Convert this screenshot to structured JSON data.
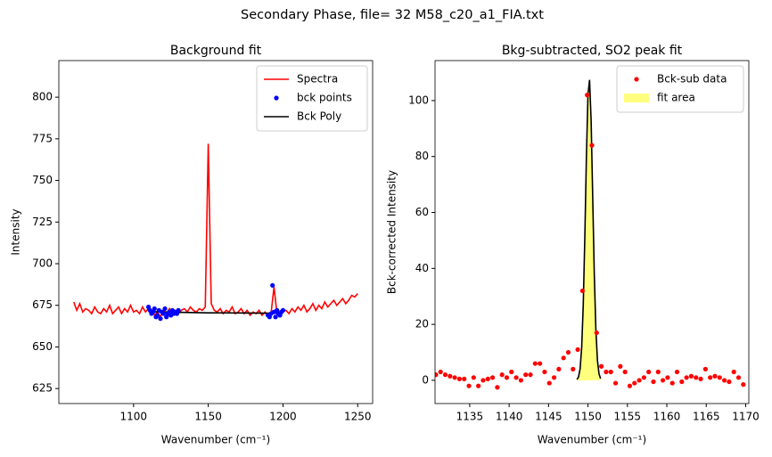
{
  "title": "Secondary Phase, file= 32 M58_c20_a1_FIA.txt",
  "chart_data": [
    {
      "type": "line",
      "title": "Background fit",
      "x_label": "Wavenumber (cm⁻¹)",
      "y_label": "Intensity",
      "xlim": [
        1050,
        1260
      ],
      "ylim": [
        616,
        822
      ],
      "xticks": [
        1100,
        1150,
        1200,
        1250
      ],
      "yticks": [
        625,
        650,
        675,
        700,
        725,
        750,
        775,
        800
      ],
      "legend": "upper right",
      "series": [
        {
          "name": "Spectra",
          "color": "#ff0000",
          "mark": "line",
          "x": [
            1060,
            1062,
            1064,
            1066,
            1068,
            1070,
            1072,
            1074,
            1076,
            1078,
            1080,
            1082,
            1084,
            1086,
            1088,
            1090,
            1092,
            1094,
            1096,
            1098,
            1100,
            1102,
            1104,
            1106,
            1108,
            1110,
            1112,
            1114,
            1116,
            1118,
            1120,
            1122,
            1124,
            1126,
            1128,
            1130,
            1132,
            1134,
            1136,
            1138,
            1140,
            1142,
            1144,
            1146,
            1148,
            1150,
            1152,
            1154,
            1156,
            1158,
            1160,
            1162,
            1164,
            1166,
            1168,
            1170,
            1172,
            1174,
            1176,
            1178,
            1180,
            1182,
            1184,
            1186,
            1188,
            1190,
            1192,
            1194,
            1196,
            1198,
            1200,
            1202,
            1204,
            1206,
            1208,
            1210,
            1212,
            1214,
            1216,
            1218,
            1220,
            1222,
            1224,
            1226,
            1228,
            1230,
            1232,
            1234,
            1236,
            1238,
            1240,
            1242,
            1244,
            1246,
            1248,
            1250
          ],
          "values": [
            677,
            672,
            676,
            671,
            673,
            672,
            670,
            674,
            671,
            670,
            673,
            671,
            675,
            670,
            672,
            674,
            670,
            673,
            671,
            675,
            671,
            672,
            670,
            674,
            671,
            673,
            672,
            669,
            671,
            668,
            672,
            670,
            673,
            669,
            671,
            670,
            672,
            673,
            671,
            674,
            672,
            671,
            673,
            672,
            674,
            772,
            676,
            672,
            671,
            673,
            670,
            672,
            671,
            674,
            670,
            671,
            673,
            670,
            672,
            669,
            671,
            670,
            672,
            669,
            671,
            668,
            670,
            686,
            670,
            669,
            671,
            672,
            670,
            673,
            671,
            674,
            672,
            675,
            671,
            673,
            676,
            672,
            675,
            673,
            677,
            674,
            676,
            678,
            675,
            677,
            679,
            676,
            678,
            681,
            680,
            682
          ]
        },
        {
          "name": "bck points",
          "color": "#0000ff",
          "mark": "dots",
          "x": [
            1110,
            1111,
            1112,
            1113,
            1114,
            1115,
            1116,
            1117,
            1118,
            1119,
            1120,
            1121,
            1122,
            1123,
            1124,
            1125,
            1126,
            1127,
            1128,
            1129,
            1130,
            1190,
            1191,
            1192,
            1193,
            1194,
            1195,
            1196,
            1197,
            1198,
            1199,
            1200
          ],
          "values": [
            674,
            672,
            670,
            671,
            673,
            668,
            669,
            672,
            667,
            671,
            670,
            673,
            668,
            670,
            671,
            669,
            672,
            670,
            671,
            670,
            672,
            669,
            668,
            670,
            687,
            671,
            668,
            672,
            670,
            669,
            671,
            672
          ]
        },
        {
          "name": "Bck Poly",
          "color": "#000000",
          "mark": "line",
          "x": [
            1110,
            1130,
            1150,
            1170,
            1190,
            1200
          ],
          "values": [
            671.2,
            670.8,
            670.5,
            670.4,
            670.3,
            670.3
          ]
        }
      ]
    },
    {
      "type": "line",
      "title": "Bkg-subtracted, SO2 peak fit",
      "x_label": "Wavenumber (cm⁻¹)",
      "y_label": "Bck-corrected Intensity",
      "xlim": [
        1130.6,
        1170.4
      ],
      "ylim": [
        -8.3,
        114.3
      ],
      "xticks": [
        1135,
        1140,
        1145,
        1150,
        1155,
        1160,
        1165,
        1170
      ],
      "yticks": [
        0,
        20,
        40,
        60,
        80,
        100
      ],
      "legend": "upper right",
      "series": [
        {
          "name": "Bck-sub data",
          "color": "#ff0000",
          "mark": "dots",
          "x": [
            1130.7,
            1131.3,
            1131.9,
            1132.5,
            1133.1,
            1133.7,
            1134.3,
            1134.9,
            1135.5,
            1136.1,
            1136.7,
            1137.3,
            1137.9,
            1138.5,
            1139.1,
            1139.7,
            1140.3,
            1140.9,
            1141.5,
            1142.1,
            1142.7,
            1143.3,
            1143.9,
            1144.5,
            1145.1,
            1145.7,
            1146.3,
            1146.9,
            1147.5,
            1148.1,
            1148.7,
            1149.3,
            1149.9,
            1150.5,
            1151.1,
            1151.7,
            1152.3,
            1152.9,
            1153.5,
            1154.1,
            1154.7,
            1155.3,
            1155.9,
            1156.5,
            1157.1,
            1157.7,
            1158.3,
            1158.9,
            1159.5,
            1160.1,
            1160.7,
            1161.3,
            1161.9,
            1162.5,
            1163.1,
            1163.7,
            1164.3,
            1164.9,
            1165.5,
            1166.1,
            1166.7,
            1167.3,
            1167.9,
            1168.5,
            1169.1,
            1169.7
          ],
          "values": [
            2,
            3,
            2,
            1.5,
            1,
            0.5,
            0.5,
            -2,
            1,
            -2,
            0,
            0.5,
            1,
            -2.5,
            2,
            1,
            3,
            1,
            0,
            2,
            2,
            6,
            6,
            3,
            -1,
            1,
            4,
            8,
            10,
            4,
            11,
            32,
            102,
            84,
            17,
            5,
            3,
            3,
            -1,
            5,
            3,
            -2,
            -1,
            0,
            1,
            3,
            -0.5,
            3,
            0,
            1,
            -1,
            3,
            -0.5,
            1,
            1.5,
            1,
            0.5,
            4,
            1,
            1.5,
            1,
            0,
            -0.5,
            3,
            1,
            -1.5
          ]
        },
        {
          "name": "fit area",
          "color": "#ffff66",
          "mark": "fill",
          "x": [
            1148.6,
            1148.8,
            1149.0,
            1149.2,
            1149.4,
            1149.6,
            1149.8,
            1150.0,
            1150.2,
            1150.4,
            1150.6,
            1150.8,
            1151.0,
            1151.2,
            1151.4,
            1151.6
          ],
          "values": [
            0.3,
            1.2,
            4.1,
            11.6,
            26.9,
            51.2,
            79.8,
            102.2,
            107.4,
            92.6,
            65.5,
            38.0,
            18.2,
            7.1,
            2.3,
            0.6
          ]
        },
        {
          "color": "#000000",
          "mark": "line",
          "x": [
            1148.6,
            1148.8,
            1149.0,
            1149.2,
            1149.4,
            1149.6,
            1149.8,
            1150.0,
            1150.2,
            1150.4,
            1150.6,
            1150.8,
            1151.0,
            1151.2,
            1151.4,
            1151.6
          ],
          "values": [
            0.3,
            1.2,
            4.1,
            11.6,
            26.9,
            51.2,
            79.8,
            102.2,
            107.4,
            92.6,
            65.5,
            38.0,
            18.2,
            7.1,
            2.3,
            0.6
          ]
        }
      ]
    }
  ]
}
